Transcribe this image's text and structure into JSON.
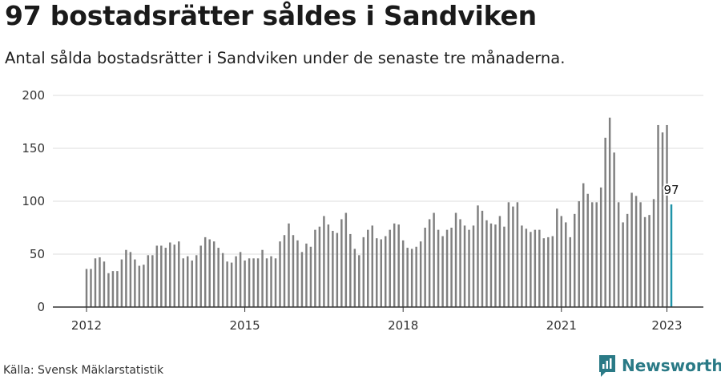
{
  "header": {
    "title": "97 bostadsrätter såldes i Sandviken",
    "subtitle": "Antal sålda bostadsrätter i Sandviken under de senaste tre månaderna."
  },
  "footer": {
    "source": "Källa: Svensk Mäklarstatistik",
    "brand": "Newsworthy"
  },
  "colors": {
    "bar": "#808080",
    "highlight": "#1f93a8",
    "brand": "#2a7a86",
    "grid": "#dddddd"
  },
  "chart_data": {
    "type": "bar",
    "x_start": "2012-01",
    "x_end": "2023-01",
    "x_ticks": [
      "2012",
      "2015",
      "2018",
      "2021",
      "2023"
    ],
    "ylim": [
      0,
      200
    ],
    "y_ticks": [
      0,
      50,
      100,
      150,
      200
    ],
    "grid": true,
    "highlight_label": "97",
    "values": [
      36,
      36,
      46,
      47,
      43,
      32,
      34,
      34,
      45,
      54,
      52,
      45,
      39,
      40,
      49,
      49,
      58,
      58,
      56,
      61,
      59,
      62,
      46,
      48,
      44,
      49,
      58,
      66,
      64,
      62,
      56,
      51,
      43,
      42,
      48,
      52,
      44,
      46,
      46,
      46,
      54,
      46,
      48,
      46,
      62,
      68,
      79,
      68,
      63,
      52,
      60,
      57,
      73,
      76,
      86,
      78,
      72,
      70,
      83,
      89,
      69,
      55,
      49,
      66,
      73,
      77,
      65,
      64,
      67,
      73,
      79,
      78,
      63,
      56,
      55,
      57,
      62,
      75,
      83,
      89,
      73,
      67,
      73,
      75,
      89,
      83,
      77,
      73,
      77,
      96,
      91,
      82,
      79,
      78,
      86,
      76,
      99,
      95,
      99,
      77,
      74,
      71,
      73,
      73,
      65,
      66,
      67,
      93,
      86,
      80,
      66,
      88,
      100,
      117,
      107,
      99,
      99,
      113,
      160,
      179,
      146,
      99,
      80,
      88,
      108,
      105,
      99,
      85,
      87,
      102,
      172,
      165,
      172,
      97
    ]
  }
}
